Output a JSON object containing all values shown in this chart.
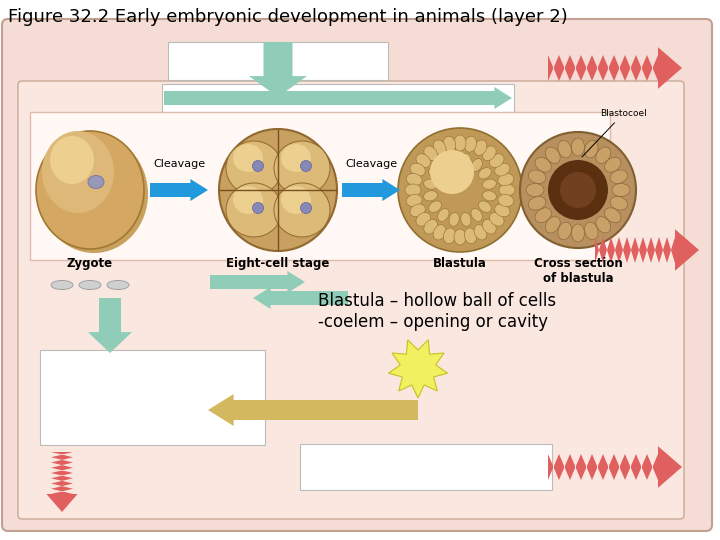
{
  "title": "Figure 32.2 Early embryonic development in animals (layer 2)",
  "title_fontsize": 13,
  "bg_color": "#FFFFFF",
  "outer_bg": "#F5DDD5",
  "inner_bg": "#FAE8E0",
  "cell_box_bg": "#FFF8F5",
  "labels": {
    "zygote": "Zygote",
    "eight_cell": "Eight-cell stage",
    "blastula": "Blastula",
    "cross_section": "Cross section\nof blastula",
    "cleavage1": "Cleavage",
    "cleavage2": "Cleavage",
    "blastocoel": "Blastocoel",
    "annotation": "Blastula – hollow ball of cells\n-coelem – opening or cavity"
  },
  "arrow_blue": "#2299DD",
  "arrow_mint": "#90CDB8",
  "arrow_yellow": "#D4B860",
  "zigzag_pink": "#E06060",
  "burst_color": "#F0F060",
  "burst_edge": "#C8C020"
}
